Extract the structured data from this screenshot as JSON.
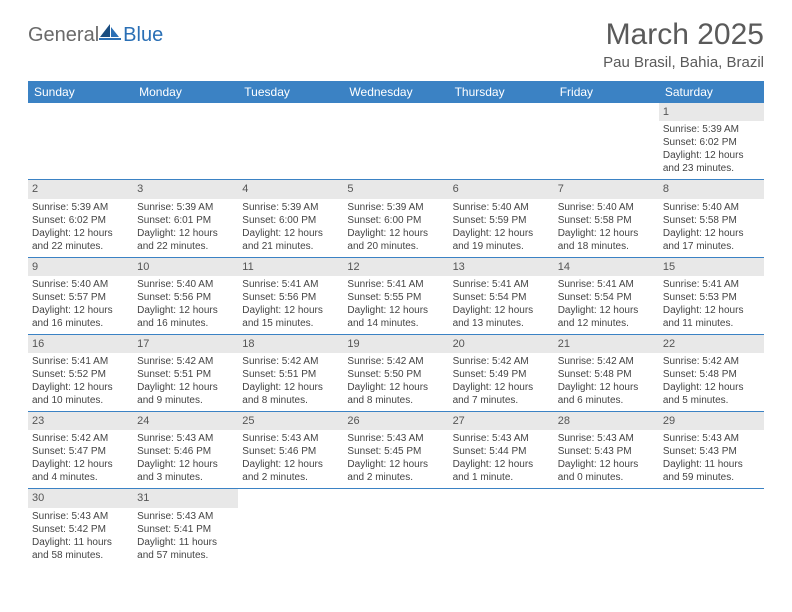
{
  "logo": {
    "general": "General",
    "blue": "Blue"
  },
  "title": "March 2025",
  "location": "Pau Brasil, Bahia, Brazil",
  "colors": {
    "header_bg": "#3b82c4",
    "header_text": "#ffffff",
    "daynum_bg": "#e8e8e8",
    "row_border": "#3b82c4",
    "text": "#444444",
    "title_text": "#5a5a5a"
  },
  "days_of_week": [
    "Sunday",
    "Monday",
    "Tuesday",
    "Wednesday",
    "Thursday",
    "Friday",
    "Saturday"
  ],
  "weeks": [
    [
      null,
      null,
      null,
      null,
      null,
      null,
      {
        "n": "1",
        "sr": "5:39 AM",
        "ss": "6:02 PM",
        "dl": "12 hours and 23 minutes."
      }
    ],
    [
      {
        "n": "2",
        "sr": "5:39 AM",
        "ss": "6:02 PM",
        "dl": "12 hours and 22 minutes."
      },
      {
        "n": "3",
        "sr": "5:39 AM",
        "ss": "6:01 PM",
        "dl": "12 hours and 22 minutes."
      },
      {
        "n": "4",
        "sr": "5:39 AM",
        "ss": "6:00 PM",
        "dl": "12 hours and 21 minutes."
      },
      {
        "n": "5",
        "sr": "5:39 AM",
        "ss": "6:00 PM",
        "dl": "12 hours and 20 minutes."
      },
      {
        "n": "6",
        "sr": "5:40 AM",
        "ss": "5:59 PM",
        "dl": "12 hours and 19 minutes."
      },
      {
        "n": "7",
        "sr": "5:40 AM",
        "ss": "5:58 PM",
        "dl": "12 hours and 18 minutes."
      },
      {
        "n": "8",
        "sr": "5:40 AM",
        "ss": "5:58 PM",
        "dl": "12 hours and 17 minutes."
      }
    ],
    [
      {
        "n": "9",
        "sr": "5:40 AM",
        "ss": "5:57 PM",
        "dl": "12 hours and 16 minutes."
      },
      {
        "n": "10",
        "sr": "5:40 AM",
        "ss": "5:56 PM",
        "dl": "12 hours and 16 minutes."
      },
      {
        "n": "11",
        "sr": "5:41 AM",
        "ss": "5:56 PM",
        "dl": "12 hours and 15 minutes."
      },
      {
        "n": "12",
        "sr": "5:41 AM",
        "ss": "5:55 PM",
        "dl": "12 hours and 14 minutes."
      },
      {
        "n": "13",
        "sr": "5:41 AM",
        "ss": "5:54 PM",
        "dl": "12 hours and 13 minutes."
      },
      {
        "n": "14",
        "sr": "5:41 AM",
        "ss": "5:54 PM",
        "dl": "12 hours and 12 minutes."
      },
      {
        "n": "15",
        "sr": "5:41 AM",
        "ss": "5:53 PM",
        "dl": "12 hours and 11 minutes."
      }
    ],
    [
      {
        "n": "16",
        "sr": "5:41 AM",
        "ss": "5:52 PM",
        "dl": "12 hours and 10 minutes."
      },
      {
        "n": "17",
        "sr": "5:42 AM",
        "ss": "5:51 PM",
        "dl": "12 hours and 9 minutes."
      },
      {
        "n": "18",
        "sr": "5:42 AM",
        "ss": "5:51 PM",
        "dl": "12 hours and 8 minutes."
      },
      {
        "n": "19",
        "sr": "5:42 AM",
        "ss": "5:50 PM",
        "dl": "12 hours and 8 minutes."
      },
      {
        "n": "20",
        "sr": "5:42 AM",
        "ss": "5:49 PM",
        "dl": "12 hours and 7 minutes."
      },
      {
        "n": "21",
        "sr": "5:42 AM",
        "ss": "5:48 PM",
        "dl": "12 hours and 6 minutes."
      },
      {
        "n": "22",
        "sr": "5:42 AM",
        "ss": "5:48 PM",
        "dl": "12 hours and 5 minutes."
      }
    ],
    [
      {
        "n": "23",
        "sr": "5:42 AM",
        "ss": "5:47 PM",
        "dl": "12 hours and 4 minutes."
      },
      {
        "n": "24",
        "sr": "5:43 AM",
        "ss": "5:46 PM",
        "dl": "12 hours and 3 minutes."
      },
      {
        "n": "25",
        "sr": "5:43 AM",
        "ss": "5:46 PM",
        "dl": "12 hours and 2 minutes."
      },
      {
        "n": "26",
        "sr": "5:43 AM",
        "ss": "5:45 PM",
        "dl": "12 hours and 2 minutes."
      },
      {
        "n": "27",
        "sr": "5:43 AM",
        "ss": "5:44 PM",
        "dl": "12 hours and 1 minute."
      },
      {
        "n": "28",
        "sr": "5:43 AM",
        "ss": "5:43 PM",
        "dl": "12 hours and 0 minutes."
      },
      {
        "n": "29",
        "sr": "5:43 AM",
        "ss": "5:43 PM",
        "dl": "11 hours and 59 minutes."
      }
    ],
    [
      {
        "n": "30",
        "sr": "5:43 AM",
        "ss": "5:42 PM",
        "dl": "11 hours and 58 minutes."
      },
      {
        "n": "31",
        "sr": "5:43 AM",
        "ss": "5:41 PM",
        "dl": "11 hours and 57 minutes."
      },
      null,
      null,
      null,
      null,
      null
    ]
  ],
  "labels": {
    "sunrise": "Sunrise: ",
    "sunset": "Sunset: ",
    "daylight": "Daylight: "
  }
}
